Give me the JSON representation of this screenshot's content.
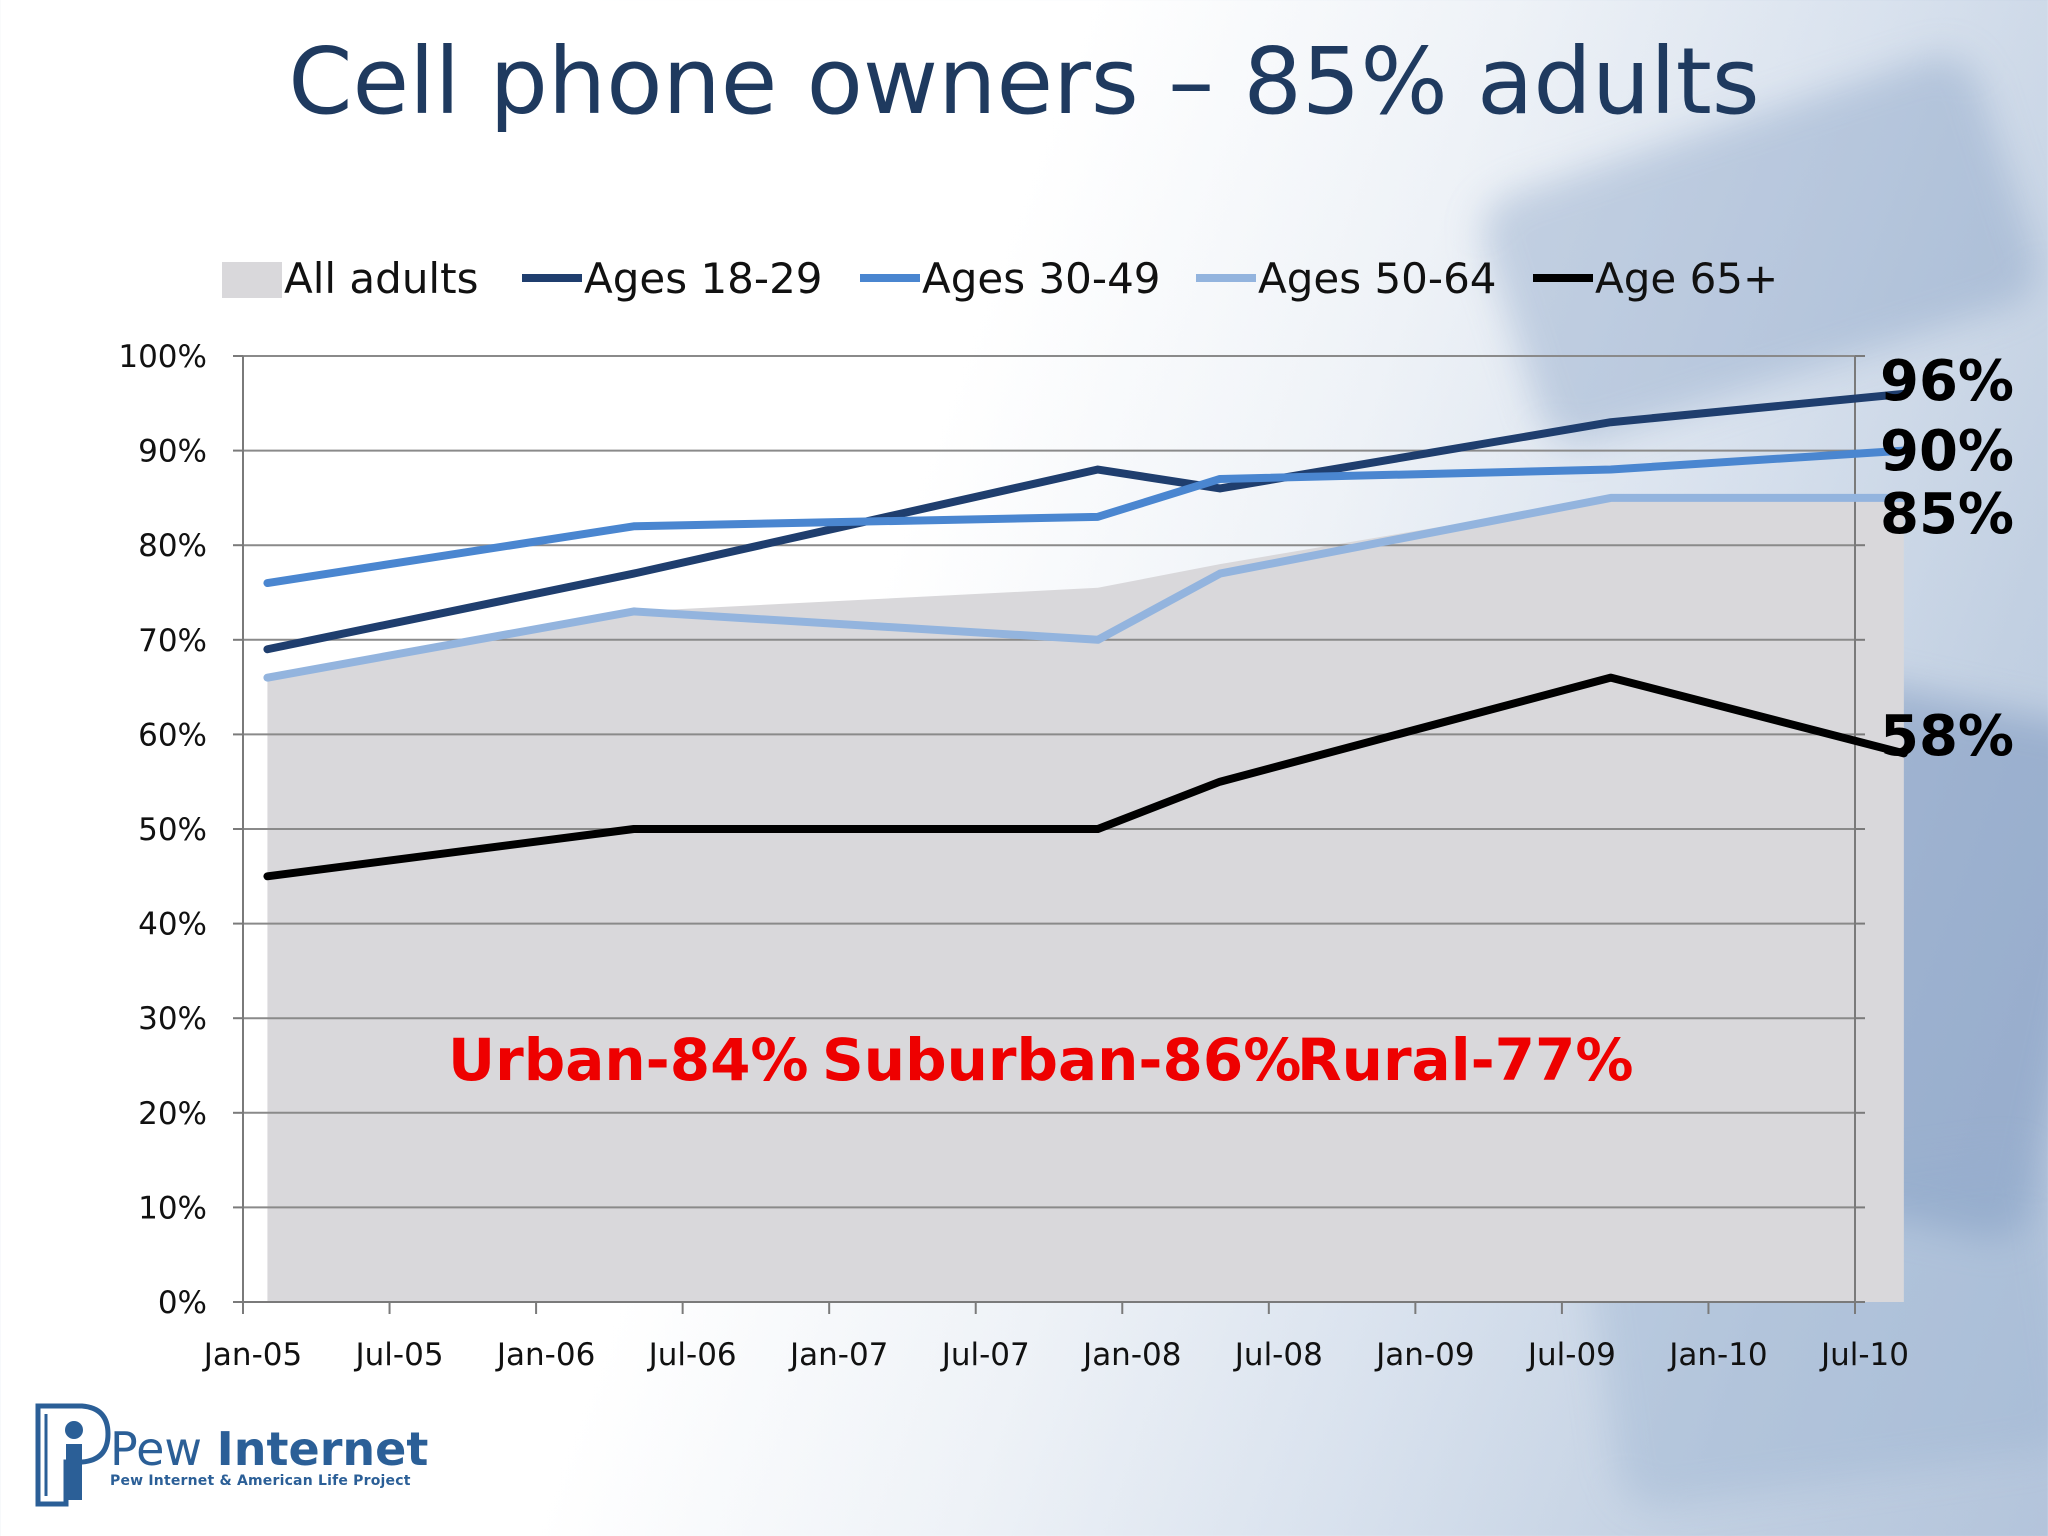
{
  "title": "Cell phone owners – 85% adults",
  "colors": {
    "title": "#1f3a5f",
    "all_adults_fill": "#d9d8db",
    "ages_18_29": "#1f3e6e",
    "ages_30_49": "#4a86d0",
    "ages_50_64": "#93b4de",
    "age_65_plus": "#000000",
    "annotation": "#ee0000",
    "logo": "#2b5f97"
  },
  "chart_data": {
    "type": "line",
    "x_ticks": [
      "Jan-05",
      "Jul-05",
      "Jan-06",
      "Jul-06",
      "Jan-07",
      "Jul-07",
      "Jan-08",
      "Jul-08",
      "Jan-09",
      "Jul-09",
      "Jan-10",
      "Jul-10"
    ],
    "y_ticks": [
      "0%",
      "10%",
      "20%",
      "30%",
      "40%",
      "50%",
      "60%",
      "70%",
      "80%",
      "90%",
      "100%"
    ],
    "ylim": [
      0,
      100
    ],
    "grid": true,
    "legend_position": "top",
    "series": [
      {
        "name": "All adults",
        "kind": "area",
        "color": "#d9d8db",
        "points": [
          [
            "2005-02",
            66
          ],
          [
            "2006-05",
            73
          ],
          [
            "2007-12",
            75.5
          ],
          [
            "2008-05",
            78
          ],
          [
            "2009-09",
            85
          ],
          [
            "2010-09",
            85
          ]
        ]
      },
      {
        "name": "Ages 18-29",
        "kind": "line",
        "color": "#1f3e6e",
        "points": [
          [
            "2005-02",
            69
          ],
          [
            "2006-05",
            77
          ],
          [
            "2007-12",
            88
          ],
          [
            "2008-05",
            86
          ],
          [
            "2009-09",
            93
          ],
          [
            "2010-09",
            96
          ]
        ]
      },
      {
        "name": "Ages 30-49",
        "kind": "line",
        "color": "#4a86d0",
        "points": [
          [
            "2005-02",
            76
          ],
          [
            "2006-05",
            82
          ],
          [
            "2007-12",
            83
          ],
          [
            "2008-05",
            87
          ],
          [
            "2009-09",
            88
          ],
          [
            "2010-09",
            90
          ]
        ]
      },
      {
        "name": "Ages 50-64",
        "kind": "line",
        "color": "#93b4de",
        "points": [
          [
            "2005-02",
            66
          ],
          [
            "2006-05",
            73
          ],
          [
            "2007-12",
            70
          ],
          [
            "2008-05",
            77
          ],
          [
            "2009-09",
            85
          ],
          [
            "2010-09",
            85
          ]
        ]
      },
      {
        "name": "Age 65+",
        "kind": "line",
        "color": "#000000",
        "points": [
          [
            "2005-02",
            45
          ],
          [
            "2006-05",
            50
          ],
          [
            "2007-12",
            50
          ],
          [
            "2008-05",
            55
          ],
          [
            "2009-09",
            66
          ],
          [
            "2010-09",
            58
          ]
        ]
      }
    ],
    "end_labels": [
      {
        "text": "96%",
        "value": 96
      },
      {
        "text": "90%",
        "value": 90
      },
      {
        "text": "85%",
        "value": 85
      },
      {
        "text": "58%",
        "value": 58
      }
    ],
    "annotations": [
      "Urban-84%",
      "Suburban-86%",
      "Rural-77%"
    ]
  },
  "logo": {
    "name_regular": "Pew",
    "name_bold": "Internet",
    "subtitle": "Pew Internet & American Life Project"
  }
}
